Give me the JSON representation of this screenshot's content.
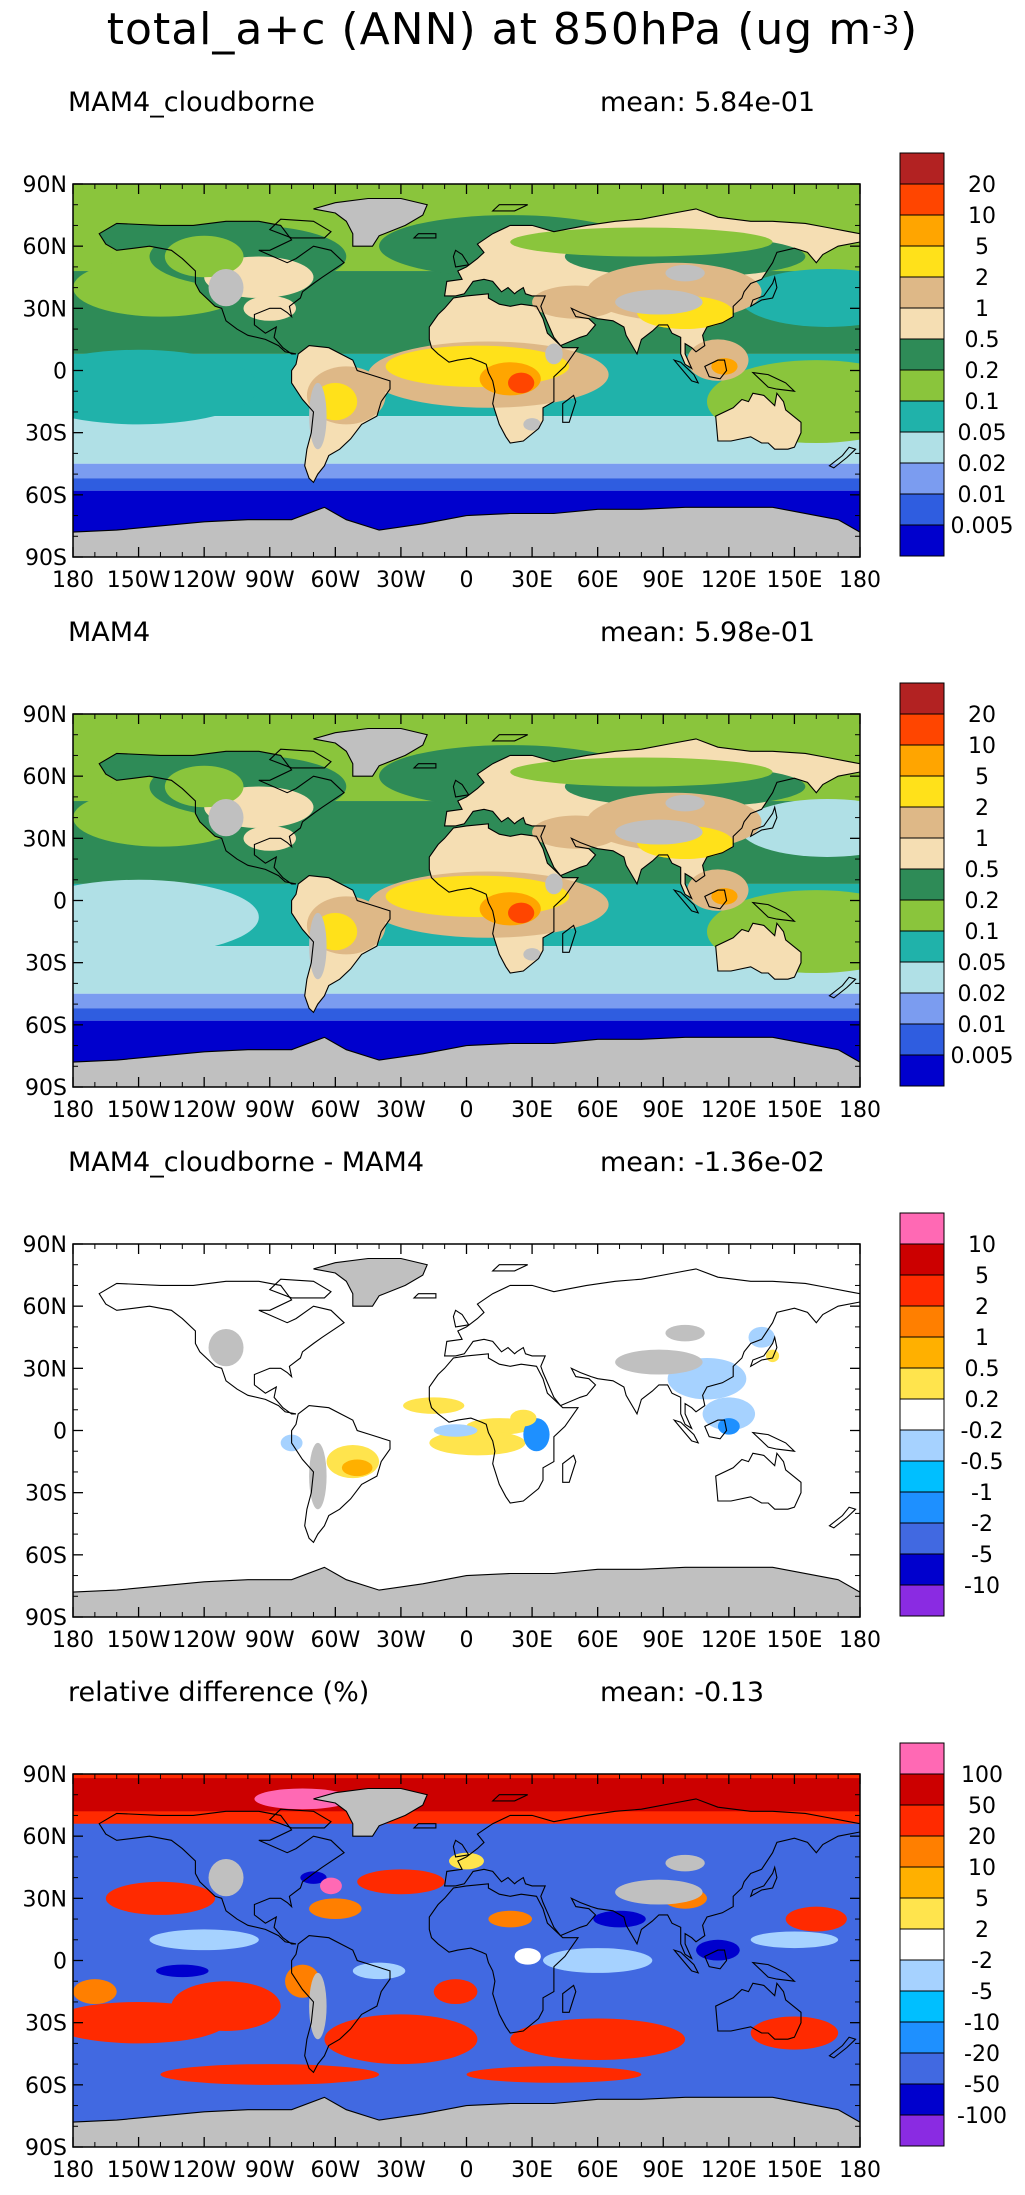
{
  "figure": {
    "title_main": "total_a+c (ANN) at 850hPa (ug m",
    "title_exp": "-3",
    "title_close": ")"
  },
  "axes": {
    "lat_labels": [
      "90N",
      "60N",
      "30N",
      "0",
      "30S",
      "60S",
      "90S"
    ],
    "lon_labels": [
      "180",
      "150W",
      "120W",
      "90W",
      "60W",
      "30W",
      "0",
      "30E",
      "60E",
      "90E",
      "120E",
      "150E",
      "180"
    ]
  },
  "panels": [
    {
      "title": "MAM4_cloudborne",
      "mean": "mean: 5.84e-01",
      "legend_labels": [
        "20",
        "10",
        "5",
        "2",
        "1",
        "0.5",
        "0.2",
        "0.1",
        "0.05",
        "0.02",
        "0.01",
        "0.005"
      ],
      "legend_colors": [
        "#b22222",
        "#ff4500",
        "#ffa500",
        "#ffe11a",
        "#deb887",
        "#f5deb3",
        "#2e8b57",
        "#8ac53c",
        "#20b2aa",
        "#b0e0e6",
        "#7b9cf0",
        "#2f5de0",
        "#0000cd"
      ],
      "missing_color": "#c0c0c0"
    },
    {
      "title": "MAM4",
      "mean": "mean: 5.98e-01",
      "legend_labels": [
        "20",
        "10",
        "5",
        "2",
        "1",
        "0.5",
        "0.2",
        "0.1",
        "0.05",
        "0.02",
        "0.01",
        "0.005"
      ],
      "legend_colors": [
        "#b22222",
        "#ff4500",
        "#ffa500",
        "#ffe11a",
        "#deb887",
        "#f5deb3",
        "#2e8b57",
        "#8ac53c",
        "#20b2aa",
        "#b0e0e6",
        "#7b9cf0",
        "#2f5de0",
        "#0000cd"
      ],
      "missing_color": "#c0c0c0"
    },
    {
      "title": "MAM4_cloudborne - MAM4",
      "mean": "mean: -1.36e-02",
      "legend_labels": [
        "10",
        "5",
        "2",
        "1",
        "0.5",
        "0.2",
        "-0.2",
        "-0.5",
        "-1",
        "-2",
        "-5",
        "-10"
      ],
      "legend_colors": [
        "#ff69b4",
        "#cc0000",
        "#ff2a00",
        "#ff7f00",
        "#ffb000",
        "#ffe44d",
        "#ffffff",
        "#a6d2ff",
        "#00bfff",
        "#1e90ff",
        "#4169e1",
        "#0000cd",
        "#8a2be2"
      ],
      "missing_color": "#c0c0c0"
    },
    {
      "title": "relative difference (%)",
      "mean": "mean: -0.13",
      "legend_labels": [
        "100",
        "50",
        "20",
        "10",
        "5",
        "2",
        "-2",
        "-5",
        "-10",
        "-20",
        "-50",
        "-100"
      ],
      "legend_colors": [
        "#ff69b4",
        "#cc0000",
        "#ff2a00",
        "#ff7f00",
        "#ffb000",
        "#ffe44d",
        "#ffffff",
        "#a6d2ff",
        "#00bfff",
        "#1e90ff",
        "#4169e1",
        "#0000cd",
        "#8a2be2"
      ],
      "missing_color": "#c0c0c0"
    }
  ]
}
